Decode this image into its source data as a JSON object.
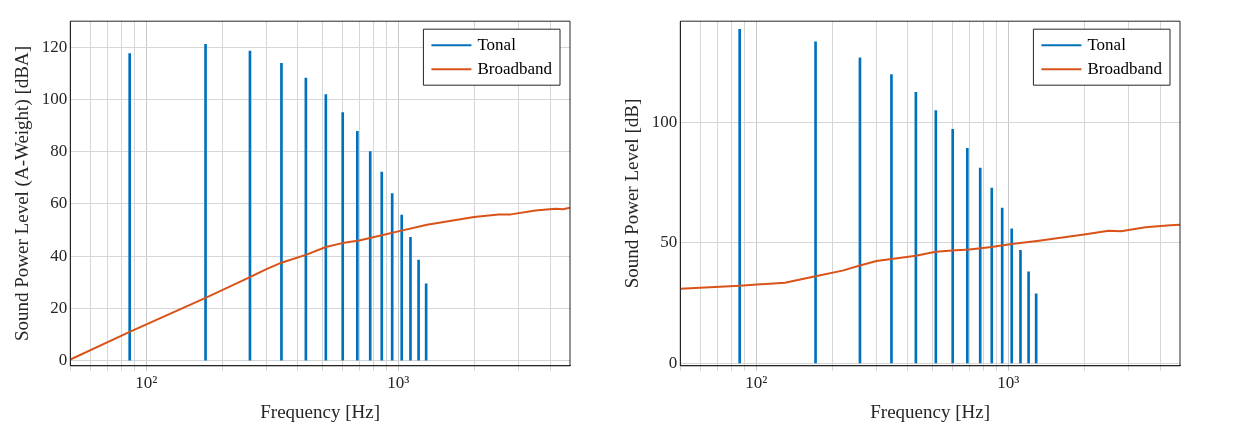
{
  "chart_data": [
    {
      "type": "line",
      "xlabel": "Frequency [Hz]",
      "ylabel": "Sound Power Level (A-Weight) [dBA]",
      "log": "x",
      "grid": true,
      "legend": "top right",
      "xlim": [
        50,
        4800
      ],
      "ylim": [
        -2,
        130
      ],
      "xticks": [
        {
          "value": 50,
          "label": null
        },
        {
          "value": 60,
          "label": null
        },
        {
          "value": 70,
          "label": null
        },
        {
          "value": 80,
          "label": null
        },
        {
          "value": 90,
          "label": null
        },
        {
          "value": 100,
          "label": "10²"
        },
        {
          "value": 200,
          "label": null
        },
        {
          "value": 300,
          "label": null
        },
        {
          "value": 400,
          "label": null
        },
        {
          "value": 500,
          "label": null
        },
        {
          "value": 600,
          "label": null
        },
        {
          "value": 700,
          "label": null
        },
        {
          "value": 800,
          "label": null
        },
        {
          "value": 900,
          "label": null
        },
        {
          "value": 1000,
          "label": "10³"
        },
        {
          "value": 2000,
          "label": null
        },
        {
          "value": 3000,
          "label": null
        },
        {
          "value": 4000,
          "label": null
        }
      ],
      "yticks": [
        0,
        20,
        40,
        60,
        80,
        100,
        120
      ],
      "series": [
        {
          "name": "Tonal",
          "type": "bar",
          "color": "#0072bd",
          "x": [
            86,
            172,
            258,
            344,
            430,
            516,
            602,
            688,
            774,
            860,
            946,
            1032,
            1118,
            1204,
            1290
          ],
          "values": [
            117.6,
            121.1,
            118.6,
            113.9,
            108.2,
            101.9,
            95,
            87.8,
            80.1,
            72.2,
            64,
            55.7,
            47.2,
            38.5,
            29.4
          ]
        },
        {
          "name": "Broadband",
          "color": "#d95319",
          "x": [
            50,
            86,
            172,
            258,
            300,
            344,
            430,
            516,
            600,
            700,
            860,
            1000,
            1300,
            2000,
            2500,
            2800,
            3500,
            4200,
            4500,
            4800
          ],
          "values": [
            0.4,
            11,
            24,
            32,
            35,
            37.5,
            40.5,
            43.5,
            45,
            46,
            48,
            49.5,
            52,
            55,
            56,
            56,
            57.5,
            58.2,
            58,
            58.5
          ]
        }
      ]
    },
    {
      "type": "line",
      "xlabel": "Frequency [Hz]",
      "ylabel": "Sound Power Level [dB]",
      "log": "x",
      "grid": true,
      "legend": "top right",
      "xlim": [
        50,
        4800
      ],
      "ylim": [
        -1,
        142
      ],
      "xticks": [
        {
          "value": 50,
          "label": null
        },
        {
          "value": 60,
          "label": null
        },
        {
          "value": 70,
          "label": null
        },
        {
          "value": 80,
          "label": null
        },
        {
          "value": 90,
          "label": null
        },
        {
          "value": 100,
          "label": "10²"
        },
        {
          "value": 200,
          "label": null
        },
        {
          "value": 300,
          "label": null
        },
        {
          "value": 400,
          "label": null
        },
        {
          "value": 500,
          "label": null
        },
        {
          "value": 600,
          "label": null
        },
        {
          "value": 700,
          "label": null
        },
        {
          "value": 800,
          "label": null
        },
        {
          "value": 900,
          "label": null
        },
        {
          "value": 1000,
          "label": "10³"
        },
        {
          "value": 2000,
          "label": null
        },
        {
          "value": 3000,
          "label": null
        },
        {
          "value": 4000,
          "label": null
        }
      ],
      "yticks": [
        0,
        50,
        100
      ],
      "series": [
        {
          "name": "Tonal",
          "type": "bar",
          "color": "#0072bd",
          "x": [
            86,
            172,
            258,
            344,
            430,
            516,
            602,
            688,
            774,
            860,
            946,
            1032,
            1118,
            1204,
            1290
          ],
          "values": [
            138.6,
            133.4,
            126.8,
            119.9,
            112.5,
            104.9,
            97.1,
            89.2,
            81,
            72.8,
            64.5,
            55.8,
            46.9,
            38,
            28.9
          ]
        },
        {
          "name": "Broadband",
          "color": "#d95319",
          "x": [
            50,
            86,
            130,
            172,
            220,
            258,
            300,
            344,
            430,
            516,
            600,
            700,
            860,
            1000,
            1300,
            2000,
            2500,
            2800,
            3500,
            4400,
            4800
          ],
          "values": [
            31,
            32.2,
            33.5,
            36.2,
            38.5,
            40.6,
            42.5,
            43.3,
            44.7,
            46.3,
            46.8,
            47.3,
            48.3,
            49.3,
            50.8,
            53.5,
            55,
            54.8,
            56.5,
            57.3,
            57.5
          ]
        }
      ]
    }
  ]
}
